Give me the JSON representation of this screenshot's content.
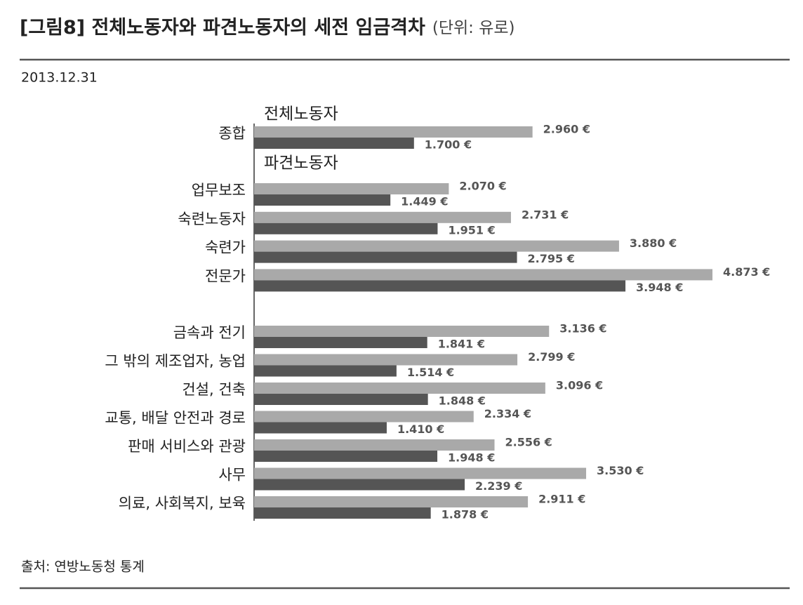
{
  "chart_data": {
    "type": "bar",
    "orientation": "horizontal",
    "title": "[그림8] 전체노동자와 파견노동자의 세전 임금격차",
    "unit": "(단위: 유로)",
    "date": "2013.12.31",
    "source": "출처: 연방노동청 통계",
    "categories": [
      "종합",
      "업무보조",
      "숙련노동자",
      "숙련가",
      "전문가",
      "금속과 전기",
      "그 밖의 제조업자, 농업",
      "건설, 건축",
      "교통, 배달 안전과 경로",
      "판매 서비스와 관광",
      "사무",
      "의료, 사회복지, 보육"
    ],
    "series": [
      {
        "name": "전체노동자",
        "color": "#a9a9a9",
        "values": [
          2960,
          2070,
          2731,
          3880,
          4873,
          3136,
          2799,
          3096,
          2334,
          2556,
          3530,
          2911
        ],
        "value_labels": [
          "2.960 €",
          "2.070 €",
          "2.731 €",
          "3.880 €",
          "4.873 €",
          "3.136 €",
          "2.799 €",
          "3.096 €",
          "2.334 €",
          "2.556 €",
          "3.530 €",
          "2.911 €"
        ]
      },
      {
        "name": "파견노동자",
        "color": "#555555",
        "values": [
          1700,
          1449,
          1951,
          2795,
          3948,
          1841,
          1514,
          1848,
          1410,
          1948,
          2239,
          1878
        ],
        "value_labels": [
          "1.700 €",
          "1.449 €",
          "1.951 €",
          "2.795 €",
          "3.948 €",
          "1.841 €",
          "1.514 €",
          "1.848 €",
          "1.410 €",
          "1.948 €",
          "2.239 €",
          "1.878 €"
        ]
      }
    ]
  }
}
